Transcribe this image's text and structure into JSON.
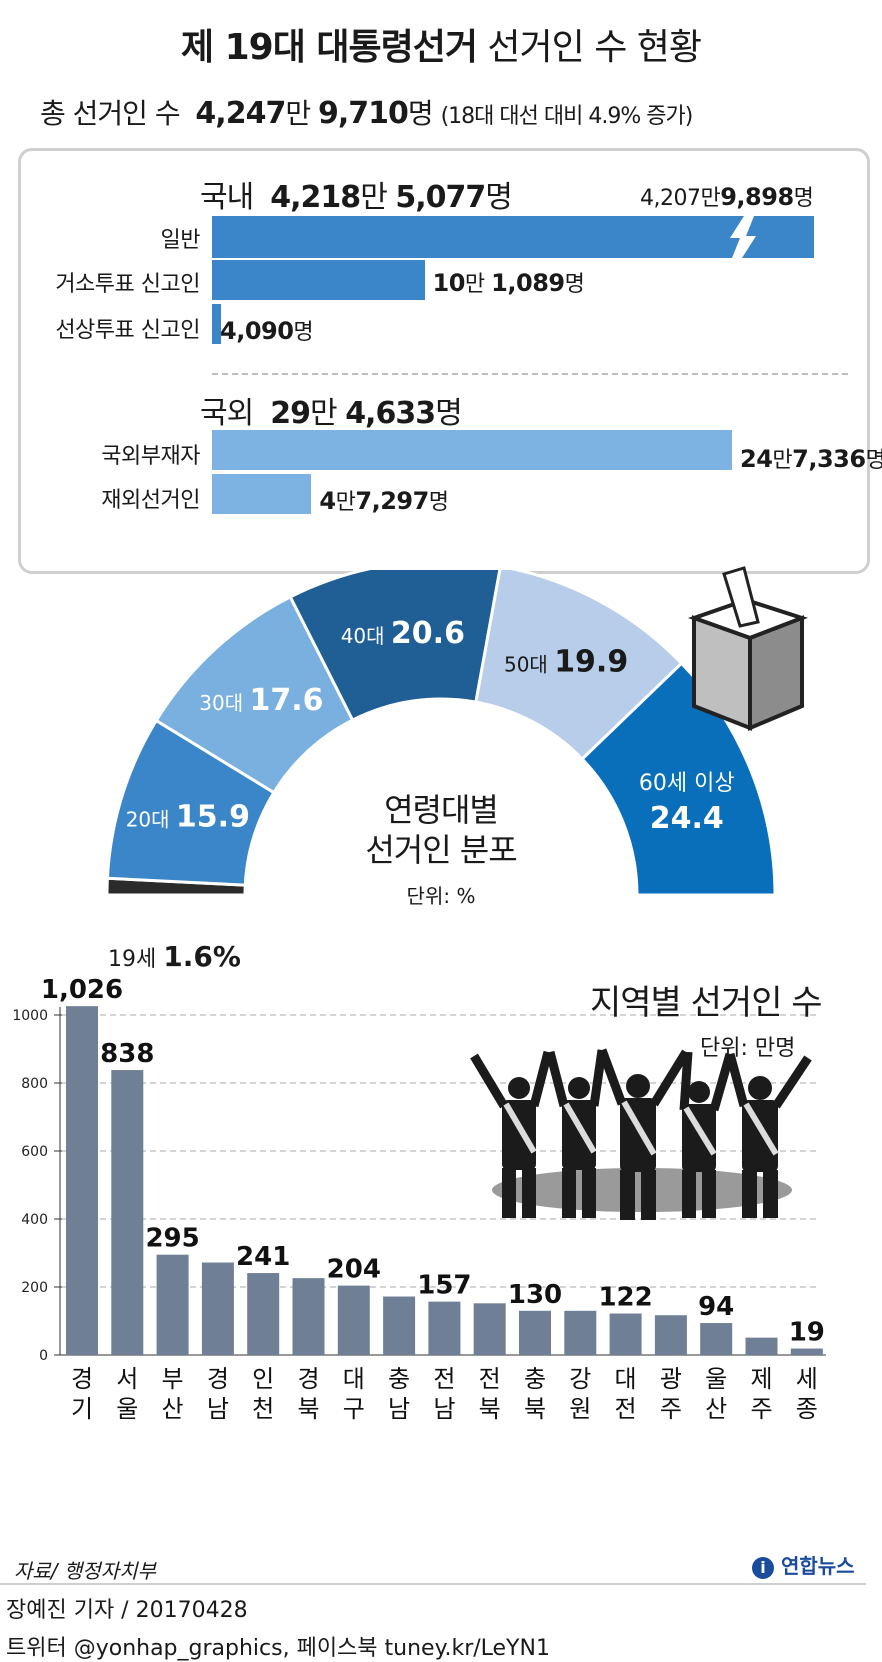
{
  "title": {
    "bold": "제 19대 대통령선거",
    "normal": "선거인 수 현황"
  },
  "total": {
    "label": "총 선거인 수",
    "man": "4,247",
    "man_unit": "만",
    "rest": "9,710",
    "rest_unit": "명",
    "note": "(18대 대선 대비 4.9% 증가)"
  },
  "domestic": {
    "label": "국내",
    "total_man": "4,218",
    "total_rest": "5,077",
    "unit_man": "만",
    "unit": "명",
    "rows": [
      {
        "label": "일반",
        "value_text_man": "4,207",
        "value_text_rest": "9,898",
        "value": 42079898,
        "broken": true
      },
      {
        "label": "거소투표 신고인",
        "value_text_man": "10",
        "value_text_rest": "1,089",
        "value": 101089
      },
      {
        "label": "선상투표 신고인",
        "value_text_man": "",
        "value_text_rest": "4,090",
        "value": 4090
      }
    ]
  },
  "overseas": {
    "label": "국외",
    "total_man": "29",
    "total_rest": "4,633",
    "unit_man": "만",
    "unit": "명",
    "rows": [
      {
        "label": "국외부재자",
        "value_text_man": "24",
        "value_text_rest": "7,336",
        "value": 247336
      },
      {
        "label": "재외선거인",
        "value_text_man": "4",
        "value_text_rest": "7,297",
        "value": 47297
      }
    ]
  },
  "age": {
    "title_line1": "연령대별",
    "title_line2": "선거인 분포",
    "unit": "단위: %",
    "teen_label": "19세",
    "teen_value": "1.6%"
  },
  "region": {
    "title": "지역별 선거인 수",
    "unit": "단위: 만명"
  },
  "source": "자료/ 행정자치부",
  "logo": "연합뉴스",
  "credit1": "장예진 기자 / 20170428",
  "credit2": "트위터 @yonhap_graphics, 페이스북 tuney.kr/LeYN1",
  "colors": {
    "domestic_bar": "#3a86c8",
    "overseas_bar": "#7db3e2",
    "region_bar": "#6f7f95"
  },
  "chart_data": [
    {
      "type": "pie",
      "subtype": "half-donut",
      "title": "연령대별 선거인 분포",
      "unit": "%",
      "categories": [
        "19세",
        "20대",
        "30대",
        "40대",
        "50대",
        "60세 이상"
      ],
      "values": [
        1.6,
        15.9,
        17.6,
        20.6,
        19.9,
        24.4
      ],
      "labels": [
        {
          "prefix": "19세",
          "value": "1.6%"
        },
        {
          "prefix": "20대",
          "value": "15.9"
        },
        {
          "prefix": "30대",
          "value": "17.6"
        },
        {
          "prefix": "40대",
          "value": "20.6"
        },
        {
          "prefix": "50대",
          "value": "19.9"
        },
        {
          "prefix": "60세 이상",
          "value": "24.4"
        }
      ],
      "colors": [
        "#2b2b2b",
        "#3a86c8",
        "#7ab0e0",
        "#1f5f96",
        "#b8cdea",
        "#0a6fbb"
      ]
    },
    {
      "type": "bar",
      "title": "지역별 선거인 수",
      "unit": "만명",
      "categories": [
        "경기",
        "서울",
        "부산",
        "경남",
        "인천",
        "경북",
        "대구",
        "충남",
        "전남",
        "전북",
        "충북",
        "강원",
        "대전",
        "광주",
        "울산",
        "제주",
        "세종"
      ],
      "category_chars": [
        [
          "경",
          "기"
        ],
        [
          "서",
          "울"
        ],
        [
          "부",
          "산"
        ],
        [
          "경",
          "남"
        ],
        [
          "인",
          "천"
        ],
        [
          "경",
          "북"
        ],
        [
          "대",
          "구"
        ],
        [
          "충",
          "남"
        ],
        [
          "전",
          "남"
        ],
        [
          "전",
          "북"
        ],
        [
          "충",
          "북"
        ],
        [
          "강",
          "원"
        ],
        [
          "대",
          "전"
        ],
        [
          "광",
          "주"
        ],
        [
          "울",
          "산"
        ],
        [
          "제",
          "주"
        ],
        [
          "세",
          "종"
        ]
      ],
      "values": [
        1026,
        838,
        295,
        272,
        241,
        226,
        204,
        172,
        157,
        152,
        130,
        130,
        122,
        117,
        94,
        51,
        19
      ],
      "value_labels": [
        "1,026",
        "838",
        "295",
        "",
        "241",
        "",
        "204",
        "",
        "157",
        "",
        "130",
        "",
        "122",
        "",
        "94",
        "",
        "19"
      ],
      "ylim": [
        0,
        1000
      ],
      "yticks": [
        "0",
        "200",
        "400",
        "600",
        "800",
        "1000"
      ],
      "grid": true
    }
  ]
}
